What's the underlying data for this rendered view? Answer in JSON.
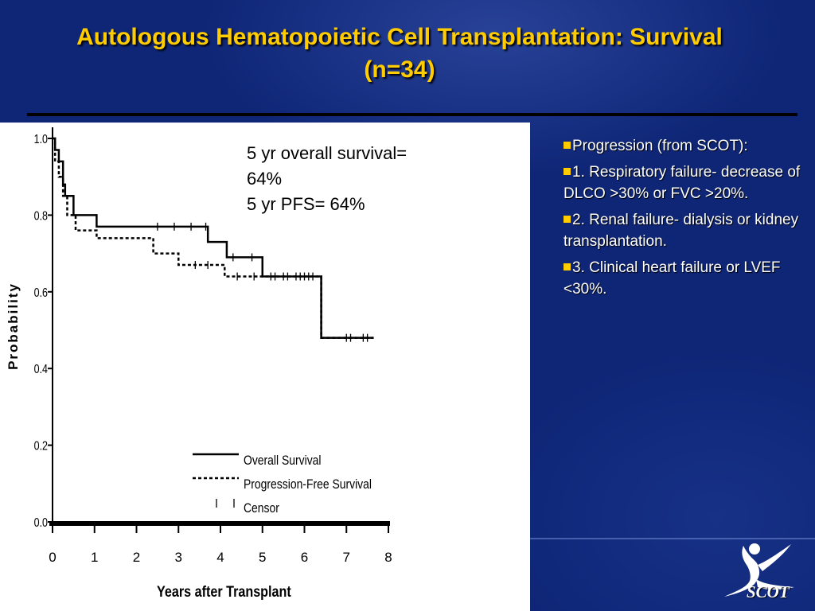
{
  "slide": {
    "title_line1": "Autologous Hematopoietic Cell Transplantation: Survival",
    "title_line2": "(n=34)",
    "accent_color": "#ffcc00",
    "background_color": "#0f2677"
  },
  "annotation": {
    "line1": "5 yr overall survival=",
    "line2": "64%",
    "line3": "5 yr PFS= 64%"
  },
  "bullets": [
    {
      "text": "Progression (from SCOT):"
    },
    {
      "text": "1. Respiratory failure- decrease of DLCO >30% or FVC >20%."
    },
    {
      "text": "2. Renal failure- dialysis or kidney transplantation."
    },
    {
      "text": "3. Clinical heart failure or LVEF <30%."
    }
  ],
  "logo": {
    "text": "SCOT",
    "icon": "person-figure-icon"
  },
  "chart_data": {
    "type": "line",
    "step": true,
    "xlabel": "Years after Transplant",
    "ylabel": "Probability",
    "xlim": [
      0,
      8
    ],
    "ylim": [
      0,
      1
    ],
    "xticks": [
      "0",
      "1",
      "2",
      "3",
      "4",
      "5",
      "6",
      "7",
      "8"
    ],
    "yticks": [
      "0.0",
      "0.2",
      "0.4",
      "0.6",
      "0.8",
      "1.0"
    ],
    "legend_position": "bottom-right",
    "series": [
      {
        "name": "Overall Survival",
        "style": "solid",
        "x": [
          0,
          0.06,
          0.15,
          0.25,
          0.3,
          0.5,
          1.05,
          3.7,
          4.15,
          5.0,
          6.4,
          7.65
        ],
        "y": [
          1.0,
          0.97,
          0.94,
          0.88,
          0.85,
          0.8,
          0.77,
          0.73,
          0.69,
          0.64,
          0.48,
          0.48
        ],
        "censor_x": [
          2.5,
          2.9,
          3.3,
          3.65,
          4.3,
          4.75,
          5.2,
          5.5,
          5.8,
          6.0,
          6.2,
          7.0,
          7.4
        ]
      },
      {
        "name": "Progression-Free Survival",
        "style": "dashed",
        "x": [
          0,
          0.06,
          0.15,
          0.25,
          0.35,
          0.55,
          1.05,
          2.4,
          3.0,
          4.1,
          6.4,
          7.65
        ],
        "y": [
          1.0,
          0.94,
          0.9,
          0.85,
          0.8,
          0.76,
          0.74,
          0.7,
          0.67,
          0.64,
          0.48,
          0.48
        ],
        "censor_x": [
          3.4,
          3.7,
          4.4,
          4.8,
          5.3,
          5.6,
          5.9,
          6.1,
          7.1,
          7.5
        ]
      }
    ],
    "censor_label": "Censor"
  }
}
